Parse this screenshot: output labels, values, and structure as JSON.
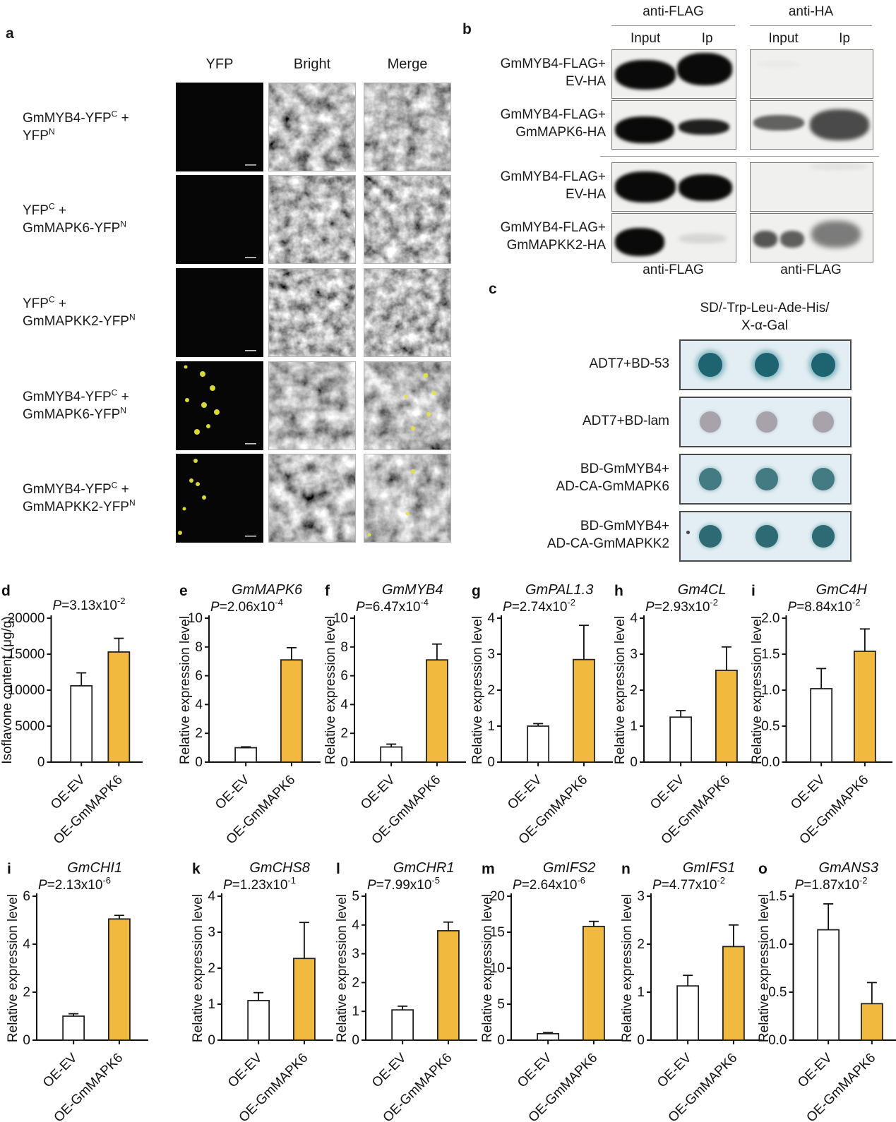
{
  "colors": {
    "bar_gold": "#F2B93F",
    "spot_plate_bg": "#E2EEF3",
    "blot_bg": "#F0F0EE",
    "yfp_dot": "#E4E43A"
  },
  "panel_a": {
    "letter": "a",
    "col_headers": [
      "YFP",
      "Bright",
      "Merge"
    ],
    "rows": [
      {
        "line1": "GmMYB4-YFP^C^ +",
        "line2": "YFP^N^",
        "signal": false
      },
      {
        "line1": "YFP^C^ +",
        "line2": "GmMAPK6-YFP^N^",
        "signal": false
      },
      {
        "line1": "YFP^C^ +",
        "line2": "GmMAPKK2-YFP^N^",
        "signal": false
      },
      {
        "line1": "GmMYB4-YFP^C^ +",
        "line2": "GmMAPK6-YFP^N^",
        "signal": true
      },
      {
        "line1": "GmMYB4-YFP^C^ +",
        "line2": "GmMAPKK2-YFP^N^",
        "signal": true
      }
    ]
  },
  "panel_b": {
    "letter": "b",
    "group_headers": [
      "anti-FLAG",
      "anti-HA"
    ],
    "lane_headers": [
      "Input",
      "Ip"
    ],
    "bottom_labels": [
      "anti-FLAG",
      "anti-FLAG"
    ],
    "rows": [
      {
        "line1": "GmMYB4-FLAG+",
        "line2": "EV-HA"
      },
      {
        "line1": "GmMYB4-FLAG+",
        "line2": "GmMAPK6-HA"
      },
      {
        "line1": "GmMYB4-FLAG+",
        "line2": "EV-HA"
      },
      {
        "line1": "GmMYB4-FLAG+",
        "line2": "GmMAPKK2-HA"
      }
    ]
  },
  "panel_c": {
    "letter": "c",
    "header_line1": "SD/-Trp-Leu-Ade-His/",
    "header_line2": "X-α-Gal",
    "rows": [
      {
        "line1": "ADT7+BD-53",
        "line2": "",
        "spot": "dark-teal"
      },
      {
        "line1": "ADT7+BD-lam",
        "line2": "",
        "spot": "gray"
      },
      {
        "line1": "BD-GmMYB4+",
        "line2": "AD-CA-GmMAPK6",
        "spot": "teal"
      },
      {
        "line1": "BD-GmMYB4+",
        "line2": "AD-CA-GmMAPKK2",
        "spot": "dark-teal2"
      }
    ]
  },
  "chart_data": [
    {
      "letter": "d",
      "type": "bar",
      "title": "",
      "p_mant": "P=3.13x10",
      "p_exp": "-2",
      "ylabel": "Isoflavone content (μg/g)",
      "ymax": 20000,
      "tick_values": [
        0,
        5000,
        10000,
        15000,
        20000
      ],
      "tick_labels": [
        "0",
        "5000",
        "10000",
        "15000",
        "20000"
      ],
      "bars": [
        {
          "label": "OE-EV",
          "value": 10600,
          "err": 1800,
          "fill": "white"
        },
        {
          "label": "OE-GmMAPK6",
          "value": 15300,
          "err": 1900,
          "fill": "gold"
        }
      ]
    },
    {
      "letter": "e",
      "type": "bar",
      "title": "GmMAPK6",
      "p_mant": "P=2.06x10",
      "p_exp": "-4",
      "ylabel": "Relative expression level",
      "ymax": 10,
      "tick_values": [
        0,
        2,
        4,
        6,
        8,
        10
      ],
      "tick_labels": [
        "0",
        "2",
        "4",
        "6",
        "8",
        "10"
      ],
      "bars": [
        {
          "label": "OE-EV",
          "value": 1.0,
          "err": 0.06,
          "fill": "white"
        },
        {
          "label": "OE-GmMAPK6",
          "value": 7.1,
          "err": 0.85,
          "fill": "gold"
        }
      ]
    },
    {
      "letter": "f",
      "type": "bar",
      "title": "GmMYB4",
      "p_mant": "P=6.47x10",
      "p_exp": "-4",
      "ylabel": "Relative expression level",
      "ymax": 10,
      "tick_values": [
        0,
        2,
        4,
        6,
        8,
        10
      ],
      "tick_labels": [
        "0",
        "2",
        "4",
        "6",
        "8",
        "10"
      ],
      "bars": [
        {
          "label": "OE-EV",
          "value": 1.05,
          "err": 0.2,
          "fill": "white"
        },
        {
          "label": "OE-GmMAPK6",
          "value": 7.1,
          "err": 1.1,
          "fill": "gold"
        }
      ]
    },
    {
      "letter": "g",
      "type": "bar",
      "title": "GmPAL1.3",
      "p_mant": "P=2.74x10",
      "p_exp": "-2",
      "ylabel": "Relative expression level",
      "ymax": 4,
      "tick_values": [
        0,
        1,
        2,
        3,
        4
      ],
      "tick_labels": [
        "0",
        "1",
        "2",
        "3",
        "4"
      ],
      "bars": [
        {
          "label": "OE-EV",
          "value": 1.0,
          "err": 0.07,
          "fill": "white"
        },
        {
          "label": "OE-GmMAPK6",
          "value": 2.85,
          "err": 0.95,
          "fill": "gold"
        }
      ]
    },
    {
      "letter": "h",
      "type": "bar",
      "title": "Gm4CL",
      "p_mant": "P=2.93x10",
      "p_exp": "-2",
      "ylabel": "Relative expression level",
      "ymax": 4,
      "tick_values": [
        0,
        1,
        2,
        3,
        4
      ],
      "tick_labels": [
        "0",
        "1",
        "2",
        "3",
        "4"
      ],
      "bars": [
        {
          "label": "OE-EV",
          "value": 1.25,
          "err": 0.18,
          "fill": "white"
        },
        {
          "label": "OE-GmMAPK6",
          "value": 2.55,
          "err": 0.65,
          "fill": "gold"
        }
      ]
    },
    {
      "letter": "i",
      "type": "bar",
      "title": "GmC4H",
      "p_mant": "P=8.84x10",
      "p_exp": "-2",
      "ylabel": "Relative expression level",
      "ymax": 2,
      "tick_values": [
        0,
        0.5,
        1,
        1.5,
        2
      ],
      "tick_labels": [
        "0.0",
        "0.5",
        "1.0",
        "1.5",
        "2.0"
      ],
      "bars": [
        {
          "label": "OE-EV",
          "value": 1.02,
          "err": 0.28,
          "fill": "white"
        },
        {
          "label": "OE-GmMAPK6",
          "value": 1.54,
          "err": 0.31,
          "fill": "gold"
        }
      ]
    },
    {
      "letter": "i",
      "type": "bar",
      "title": "GmCHI1",
      "p_mant": "P=2.13x10",
      "p_exp": "-6",
      "ylabel": "Relative expression level",
      "ymax": 6,
      "tick_values": [
        0,
        2,
        4,
        6
      ],
      "tick_labels": [
        "0",
        "2",
        "4",
        "6"
      ],
      "bars": [
        {
          "label": "OE-EV",
          "value": 1.0,
          "err": 0.1,
          "fill": "white"
        },
        {
          "label": "OE-GmMAPK6",
          "value": 5.05,
          "err": 0.15,
          "fill": "gold"
        }
      ]
    },
    {
      "letter": "k",
      "type": "bar",
      "title": "GmCHS8",
      "p_mant": "P=1.23x10",
      "p_exp": "-1",
      "ylabel": "Relative expression level",
      "ymax": 4,
      "tick_values": [
        0,
        1,
        2,
        3,
        4
      ],
      "tick_labels": [
        "0",
        "1",
        "2",
        "3",
        "4"
      ],
      "bars": [
        {
          "label": "OE-EV",
          "value": 1.1,
          "err": 0.22,
          "fill": "white"
        },
        {
          "label": "OE-GmMAPK6",
          "value": 2.27,
          "err": 1.0,
          "fill": "gold"
        }
      ]
    },
    {
      "letter": "l",
      "type": "bar",
      "title": "GmCHR1",
      "p_mant": "P=7.99x10",
      "p_exp": "-5",
      "ylabel": "Relative expression level",
      "ymax": 5,
      "tick_values": [
        0,
        1,
        2,
        3,
        4,
        5
      ],
      "tick_labels": [
        "0",
        "1",
        "2",
        "3",
        "4",
        "5"
      ],
      "bars": [
        {
          "label": "OE-EV",
          "value": 1.05,
          "err": 0.13,
          "fill": "white"
        },
        {
          "label": "OE-GmMAPK6",
          "value": 3.8,
          "err": 0.3,
          "fill": "gold"
        }
      ]
    },
    {
      "letter": "m",
      "type": "bar",
      "title": "GmIFS2",
      "p_mant": "P=2.64x10",
      "p_exp": "-6",
      "ylabel": "Relative expression level",
      "ymax": 20,
      "tick_values": [
        0,
        5,
        10,
        15,
        20
      ],
      "tick_labels": [
        "0",
        "5",
        "10",
        "15",
        "20"
      ],
      "bars": [
        {
          "label": "OE-EV",
          "value": 0.9,
          "err": 0.15,
          "fill": "white"
        },
        {
          "label": "OE-GmMAPK6",
          "value": 15.8,
          "err": 0.7,
          "fill": "gold"
        }
      ]
    },
    {
      "letter": "n",
      "type": "bar",
      "title": "GmIFS1",
      "p_mant": "P=4.77x10",
      "p_exp": "-2",
      "ylabel": "Relative expression level",
      "ymax": 3,
      "tick_values": [
        0,
        1,
        2,
        3
      ],
      "tick_labels": [
        "0",
        "1",
        "2",
        "3"
      ],
      "bars": [
        {
          "label": "OE-EV",
          "value": 1.13,
          "err": 0.22,
          "fill": "white"
        },
        {
          "label": "OE-GmMAPK6",
          "value": 1.95,
          "err": 0.45,
          "fill": "gold"
        }
      ]
    },
    {
      "letter": "o",
      "type": "bar",
      "title": "GmANS3",
      "p_mant": "P=1.87x10",
      "p_exp": "-2",
      "ylabel": "Relative expression level",
      "ymax": 1.5,
      "tick_values": [
        0,
        0.5,
        1,
        1.5
      ],
      "tick_labels": [
        "0.0",
        "0.5",
        "1.0",
        "1.5"
      ],
      "bars": [
        {
          "label": "OE-EV",
          "value": 1.15,
          "err": 0.27,
          "fill": "white"
        },
        {
          "label": "OE-GmMAPK6",
          "value": 0.38,
          "err": 0.22,
          "fill": "gold"
        }
      ]
    }
  ]
}
